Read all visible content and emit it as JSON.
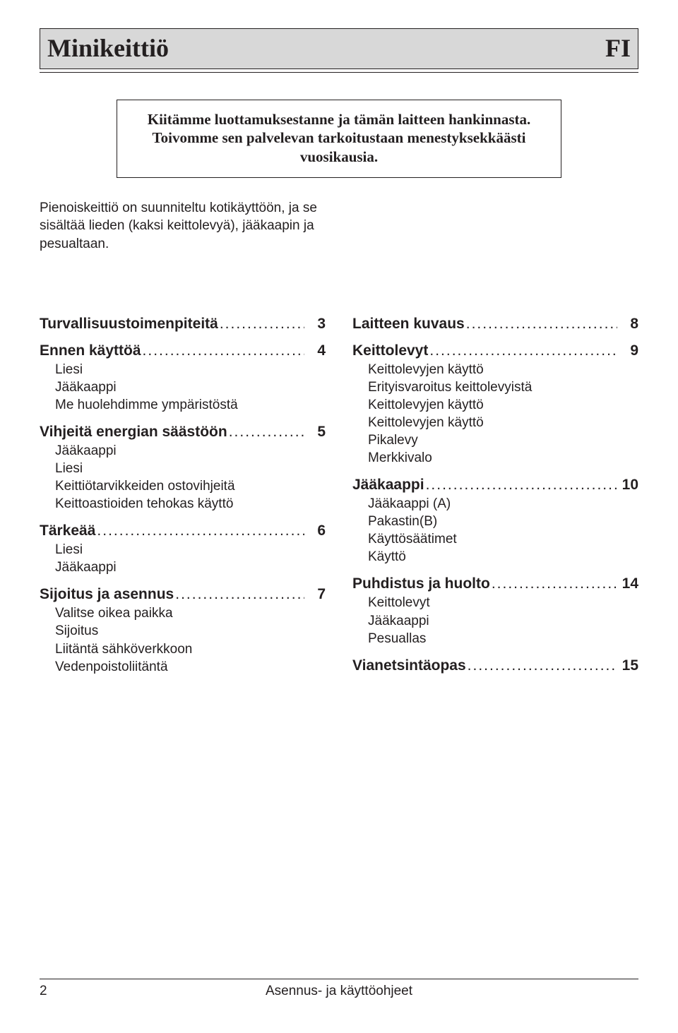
{
  "colors": {
    "text": "#231f20",
    "header_bg": "#d8d8d8",
    "page_bg": "#ffffff",
    "border": "#231f20"
  },
  "typography": {
    "serif_family": "Times New Roman",
    "sans_family": "Arial",
    "header_title_fontsize_pt": 27,
    "thankyou_fontsize_pt": 16,
    "body_fontsize_pt": 14,
    "toc_heading_fontsize_pt": 16,
    "toc_sub_fontsize_pt": 14,
    "footer_fontsize_pt": 14
  },
  "header": {
    "title": "Minikeittiö",
    "lang_code": "FI"
  },
  "thank_you": {
    "line1": "Kiitämme luottamuksestanne ja tämän laitteen hankinnasta.",
    "line2": "Toivomme sen palvelevan tarkoitustaan menestyksekkäästi vuosikausia."
  },
  "intro": "Pienoiskeittiö on suunniteltu kotikäyttöön, ja se sisältää lieden (kaksi keittolevyä), jääkaapin ja pesualtaan.",
  "toc": {
    "left": [
      {
        "label": "Turvallisuustoimenpiteitä",
        "page": "3",
        "subs": []
      },
      {
        "label": "Ennen käyttöä",
        "page": "4",
        "subs": [
          "Liesi",
          "Jääkaappi",
          "Me huolehdimme ympäristöstä"
        ]
      },
      {
        "label": "Vihjeitä energian säästöön",
        "page": "5",
        "subs": [
          "Jääkaappi",
          "Liesi",
          "Keittiötarvikkeiden ostovihjeitä",
          "Keittoastioiden tehokas käyttö"
        ]
      },
      {
        "label": "Tärkeää",
        "page": "6",
        "subs": [
          "Liesi",
          "Jääkaappi"
        ]
      },
      {
        "label": "Sijoitus ja asennus",
        "page": "7",
        "subs": [
          "Valitse oikea paikka",
          "Sijoitus",
          "Liitäntä sähköverkkoon",
          "Vedenpoistoliitäntä"
        ]
      }
    ],
    "right": [
      {
        "label": "Laitteen kuvaus",
        "page": "8",
        "subs": []
      },
      {
        "label": "Keittolevyt",
        "page": "9",
        "subs": [
          "Keittolevyjen käyttö",
          "Erityisvaroitus keittolevyistä",
          "Keittolevyjen käyttö",
          "Keittolevyjen käyttö",
          "Pikalevy",
          "Merkkivalo"
        ]
      },
      {
        "label": "Jääkaappi",
        "page": "10",
        "subs": [
          "Jääkaappi (A)",
          "Pakastin(B)",
          "Käyttösäätimet",
          "Käyttö"
        ]
      },
      {
        "label": "Puhdistus ja huolto",
        "page": "14",
        "subs": [
          "Keittolevyt",
          "Jääkaappi",
          "Pesuallas"
        ]
      },
      {
        "label": "Vianetsintäopas",
        "page": "15",
        "subs": []
      }
    ]
  },
  "footer": {
    "page_num": "2",
    "doc_title": "Asennus- ja käyttöohjeet"
  }
}
